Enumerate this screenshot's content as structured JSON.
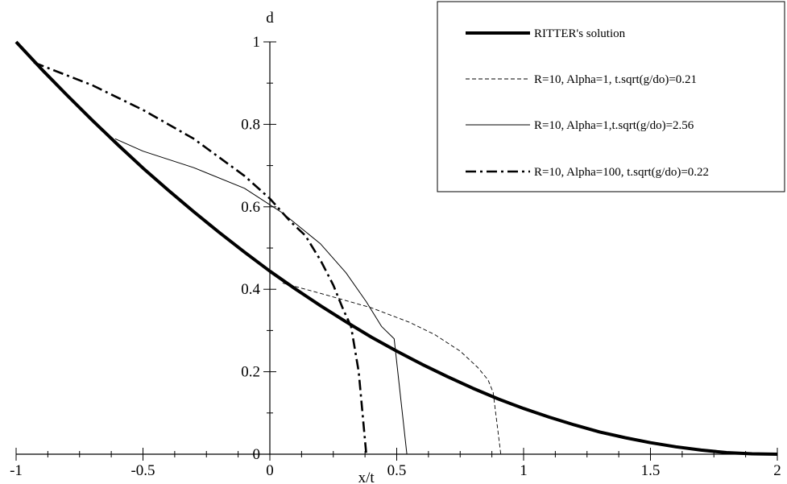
{
  "chart_data": {
    "type": "line",
    "title": "",
    "xlabel": "x/t",
    "ylabel": "d",
    "xlim": [
      -1,
      2
    ],
    "ylim": [
      0,
      1
    ],
    "xticks": [
      -1,
      -0.5,
      0,
      0.5,
      1,
      1.5,
      2
    ],
    "xtick_labels": [
      "-1",
      "-0.5",
      "0",
      "0.5",
      "1",
      "1.5",
      "2"
    ],
    "yticks": [
      0,
      0.2,
      0.4,
      0.6,
      0.8,
      1
    ],
    "ytick_labels": [
      "0",
      "0.2",
      "0.4",
      "0.6",
      "0.8",
      "1"
    ],
    "grid": false,
    "legend_position": "top-right",
    "series": [
      {
        "name": "RITTER's solution",
        "style": "thick-solid",
        "x": [
          -1,
          -0.9,
          -0.8,
          -0.7,
          -0.6,
          -0.5,
          -0.4,
          -0.3,
          -0.2,
          -0.1,
          0,
          0.1,
          0.2,
          0.3,
          0.4,
          0.5,
          0.6,
          0.7,
          0.8,
          0.9,
          1,
          1.1,
          1.2,
          1.3,
          1.4,
          1.5,
          1.6,
          1.7,
          1.8,
          1.9,
          2
        ],
        "y": [
          1,
          0.934,
          0.871,
          0.81,
          0.751,
          0.694,
          0.64,
          0.588,
          0.538,
          0.49,
          0.444,
          0.401,
          0.36,
          0.321,
          0.284,
          0.25,
          0.218,
          0.188,
          0.16,
          0.134,
          0.111,
          0.09,
          0.071,
          0.054,
          0.04,
          0.028,
          0.018,
          0.01,
          0.004,
          0.001,
          0
        ]
      },
      {
        "name": "R=10, Alpha=1, t.sqrt(g/do)=0.21",
        "style": "thin-dashed",
        "x": [
          0.05,
          0.2,
          0.4,
          0.55,
          0.65,
          0.75,
          0.82,
          0.86,
          0.88,
          0.91
        ],
        "y": [
          0.415,
          0.39,
          0.355,
          0.32,
          0.29,
          0.25,
          0.21,
          0.18,
          0.15,
          0
        ]
      },
      {
        "name": "R=10, Alpha=1,t.sqrt(g/do)=2.56",
        "style": "thin-solid",
        "x": [
          -0.61,
          -0.5,
          -0.3,
          -0.1,
          0.05,
          0.2,
          0.3,
          0.38,
          0.44,
          0.49,
          0.54
        ],
        "y": [
          0.765,
          0.735,
          0.695,
          0.645,
          0.585,
          0.51,
          0.44,
          0.37,
          0.31,
          0.28,
          0
        ]
      },
      {
        "name": "R=10, Alpha=100, t.sqrt(g/do)=0.22",
        "style": "thick-dashdot",
        "x": [
          -0.93,
          -0.7,
          -0.5,
          -0.3,
          -0.1,
          0,
          0.08,
          0.14,
          0.2,
          0.25,
          0.29,
          0.32,
          0.35,
          0.38
        ],
        "y": [
          0.95,
          0.895,
          0.835,
          0.765,
          0.675,
          0.62,
          0.565,
          0.53,
          0.47,
          0.41,
          0.35,
          0.31,
          0.2,
          0
        ]
      }
    ]
  }
}
